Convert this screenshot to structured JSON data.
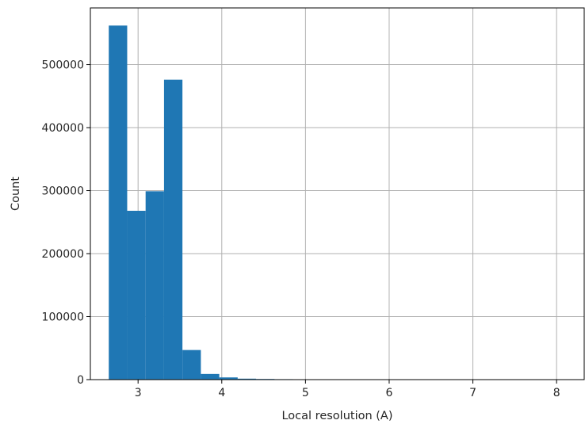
{
  "chart_data": {
    "type": "bar",
    "subtype": "histogram",
    "title": "",
    "xlabel": "Local resolution (A)",
    "ylabel": "Count",
    "xlim": [
      2.43,
      8.33
    ],
    "ylim": [
      0,
      590000
    ],
    "xticks": [
      3,
      4,
      5,
      6,
      7,
      8
    ],
    "yticks": [
      0,
      100000,
      200000,
      300000,
      400000,
      500000
    ],
    "grid": true,
    "legend": "none",
    "bar_color": "#1f77b4",
    "bins": [
      {
        "x0": 2.65,
        "x1": 2.87,
        "count": 562000
      },
      {
        "x0": 2.87,
        "x1": 3.09,
        "count": 268000
      },
      {
        "x0": 3.09,
        "x1": 3.31,
        "count": 299000
      },
      {
        "x0": 3.31,
        "x1": 3.53,
        "count": 476000
      },
      {
        "x0": 3.53,
        "x1": 3.75,
        "count": 47000
      },
      {
        "x0": 3.75,
        "x1": 3.97,
        "count": 9000
      },
      {
        "x0": 3.97,
        "x1": 4.19,
        "count": 3500
      },
      {
        "x0": 4.19,
        "x1": 4.41,
        "count": 1500
      },
      {
        "x0": 4.41,
        "x1": 4.63,
        "count": 1000
      },
      {
        "x0": 4.63,
        "x1": 4.85,
        "count": 700
      },
      {
        "x0": 4.85,
        "x1": 5.07,
        "count": 400
      },
      {
        "x0": 5.07,
        "x1": 5.29,
        "count": 250
      },
      {
        "x0": 5.29,
        "x1": 5.51,
        "count": 180
      },
      {
        "x0": 5.51,
        "x1": 5.73,
        "count": 140
      },
      {
        "x0": 5.73,
        "x1": 5.95,
        "count": 110
      },
      {
        "x0": 5.95,
        "x1": 6.17,
        "count": 90
      },
      {
        "x0": 6.17,
        "x1": 6.39,
        "count": 70
      },
      {
        "x0": 6.39,
        "x1": 6.61,
        "count": 50
      },
      {
        "x0": 6.61,
        "x1": 6.83,
        "count": 40
      },
      {
        "x0": 6.83,
        "x1": 7.05,
        "count": 30
      },
      {
        "x0": 7.05,
        "x1": 7.27,
        "count": 25
      },
      {
        "x0": 7.27,
        "x1": 7.49,
        "count": 20
      },
      {
        "x0": 7.49,
        "x1": 7.71,
        "count": 15
      },
      {
        "x0": 7.71,
        "x1": 7.93,
        "count": 10
      },
      {
        "x0": 7.93,
        "x1": 8.15,
        "count": 8
      }
    ]
  }
}
